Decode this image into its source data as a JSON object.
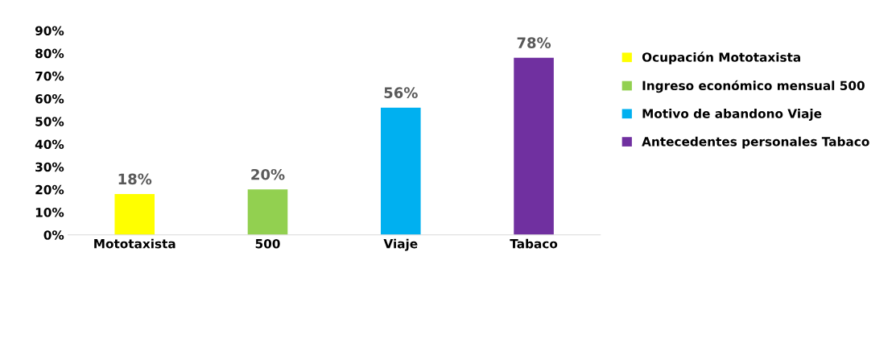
{
  "chart_data": {
    "type": "bar",
    "categories": [
      "Mototaxista",
      "500",
      "Viaje",
      "Tabaco"
    ],
    "series": [
      {
        "name": "Ocupación Mototaxista",
        "color": "#ffff00",
        "values": [
          18,
          null,
          null,
          null
        ],
        "value_labels": [
          "18%",
          null,
          null,
          null
        ]
      },
      {
        "name": "Ingreso económico mensual 500",
        "color": "#92d050",
        "values": [
          null,
          20,
          null,
          null
        ],
        "value_labels": [
          null,
          "20%",
          null,
          null
        ]
      },
      {
        "name": "Motivo de abandono Viaje",
        "color": "#00b0f0",
        "values": [
          null,
          null,
          56,
          null
        ],
        "value_labels": [
          null,
          null,
          "56%",
          null
        ]
      },
      {
        "name": "Antecedentes personales Tabaco",
        "color": "#7030a0",
        "values": [
          null,
          null,
          null,
          78
        ],
        "value_labels": [
          null,
          null,
          null,
          "78%"
        ]
      }
    ],
    "ylim": [
      0,
      90
    ],
    "yticks": [
      {
        "value": 0,
        "label": "0%"
      },
      {
        "value": 10,
        "label": "10%"
      },
      {
        "value": 20,
        "label": "20%"
      },
      {
        "value": 30,
        "label": "30%"
      },
      {
        "value": 40,
        "label": "40%"
      },
      {
        "value": 50,
        "label": "50%"
      },
      {
        "value": 60,
        "label": "60%"
      },
      {
        "value": 70,
        "label": "70%"
      },
      {
        "value": 80,
        "label": "80%"
      },
      {
        "value": 90,
        "label": "90%"
      }
    ],
    "grid": false,
    "legend": "right"
  }
}
